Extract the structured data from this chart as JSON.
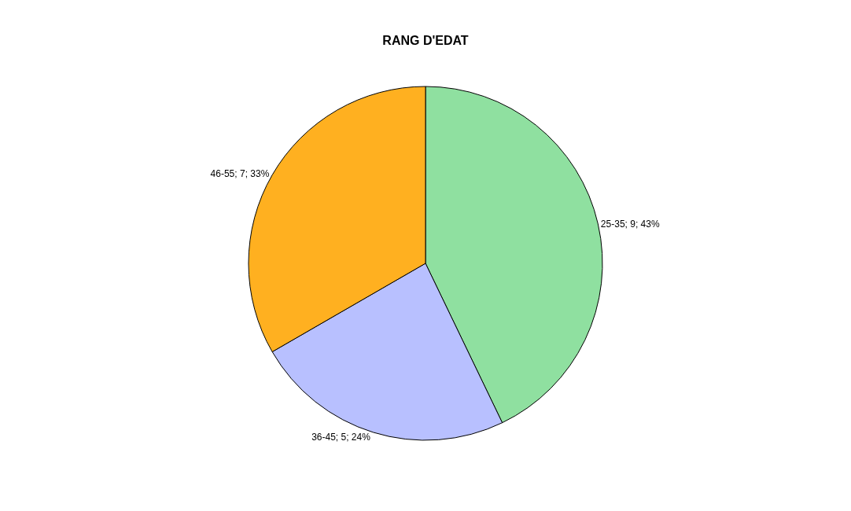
{
  "chart_data": {
    "type": "pie",
    "title": "RANG D'EDAT",
    "categories": [
      "25-35",
      "36-45",
      "46-55"
    ],
    "values": [
      9,
      5,
      7
    ],
    "value_labels": [
      "9; 43%",
      "5; 24%",
      "7; 33%"
    ],
    "colors": [
      "#8fe0a0",
      "#b8c0ff",
      "#ffb020"
    ],
    "legend": false
  }
}
